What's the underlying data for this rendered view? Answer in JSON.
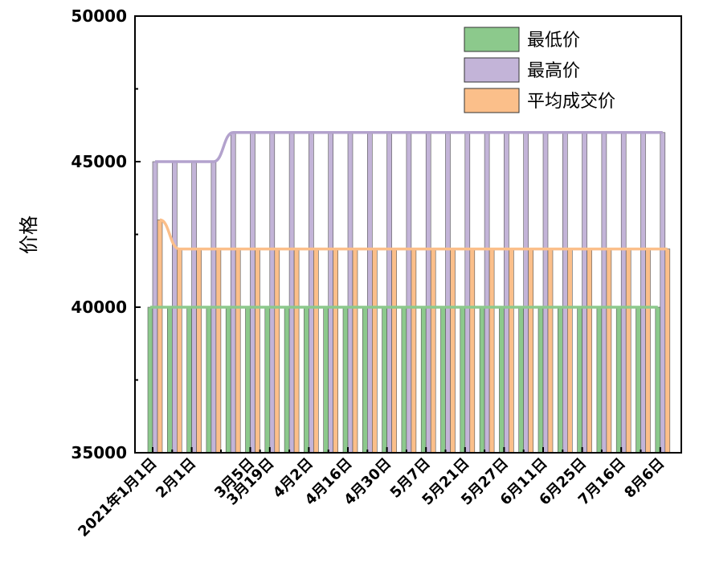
{
  "chart_data": {
    "type": "bar",
    "ylabel": "价格",
    "xlabel": "",
    "ylim": [
      35000,
      50000
    ],
    "yticks": [
      35000,
      40000,
      45000,
      50000
    ],
    "n_points": 27,
    "xtick_labels": [
      "2021年1月1日",
      "2月1日",
      "3月5日",
      "3月19日",
      "4月2日",
      "4月16日",
      "4月30日",
      "5月7日",
      "5月21日",
      "5月27日",
      "6月11日",
      "6月25日",
      "7月16日",
      "8月6日"
    ],
    "xtick_positions": [
      0,
      2,
      5,
      6,
      8,
      10,
      12,
      14,
      16,
      18,
      20,
      22,
      24,
      26
    ],
    "series": [
      {
        "name": "最低价",
        "color": "#8cc98c",
        "values": [
          40000,
          40000,
          40000,
          40000,
          40000,
          40000,
          40000,
          40000,
          40000,
          40000,
          40000,
          40000,
          40000,
          40000,
          40000,
          40000,
          40000,
          40000,
          40000,
          40000,
          40000,
          40000,
          40000,
          40000,
          40000,
          40000,
          40000
        ]
      },
      {
        "name": "最高价",
        "color": "#c3b4d8",
        "values": [
          45000,
          45000,
          45000,
          45000,
          46000,
          46000,
          46000,
          46000,
          46000,
          46000,
          46000,
          46000,
          46000,
          46000,
          46000,
          46000,
          46000,
          46000,
          46000,
          46000,
          46000,
          46000,
          46000,
          46000,
          46000,
          46000,
          46000
        ]
      },
      {
        "name": "平均成交价",
        "color": "#fbbf8a",
        "values": [
          43000,
          42000,
          42000,
          42000,
          42000,
          42000,
          42000,
          42000,
          42000,
          42000,
          42000,
          42000,
          42000,
          42000,
          42000,
          42000,
          42000,
          42000,
          42000,
          42000,
          42000,
          42000,
          42000,
          42000,
          42000,
          42000,
          42000
        ]
      }
    ],
    "legend_position": "top-right",
    "grid": false
  }
}
